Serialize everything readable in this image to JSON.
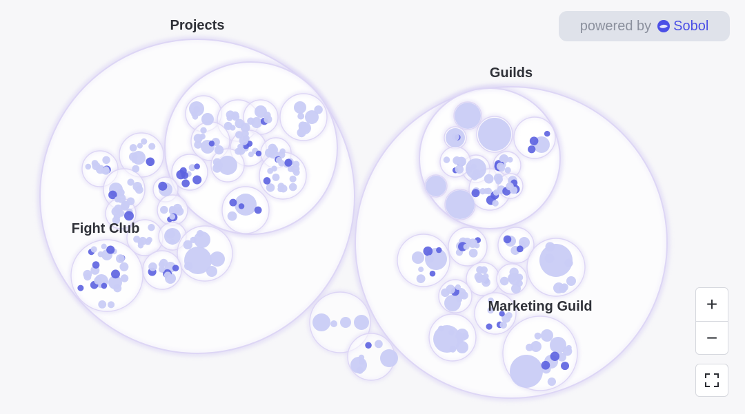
{
  "branding": {
    "powered_by": "powered by",
    "brand_name": "Sobol",
    "brand_color": "#4b4fe6"
  },
  "groups": {
    "projects": "Projects",
    "fight_club": "Fight Club",
    "guilds": "Guilds",
    "marketing_guild": "Marketing Guild"
  },
  "controls": {
    "zoom_in": "+",
    "zoom_out": "−",
    "fullscreen_icon": "fullscreen-icon"
  },
  "colors": {
    "background": "#f7f7f9",
    "group_fill": "#ffffff",
    "group_stroke": "#ddd6f5",
    "member_fill": "#c9ccf6",
    "member_accent": "#5c62e0"
  }
}
